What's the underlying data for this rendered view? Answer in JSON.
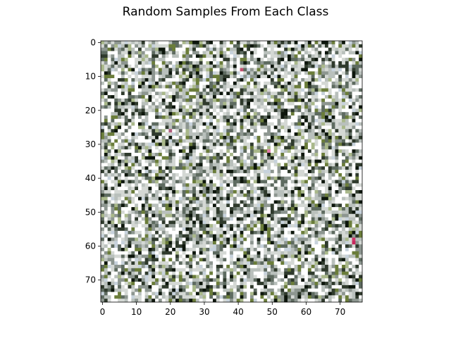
{
  "figure": {
    "title": "Random Samples From Each Class"
  },
  "chart_data": {
    "type": "heatmap",
    "title": "Random Samples From Each Class",
    "xlabel": "",
    "ylabel": "",
    "image_size": [
      77,
      77
    ],
    "xlim": [
      -0.5,
      76.5
    ],
    "ylim": [
      76.5,
      -0.5
    ],
    "xticks": [
      0,
      10,
      20,
      30,
      40,
      50,
      60,
      70
    ],
    "yticks": [
      0,
      10,
      20,
      30,
      40,
      50,
      60,
      70
    ],
    "grid": false,
    "legend": "none",
    "palette": [
      "#ffffff",
      "#d4d8d4",
      "#b9c0bc",
      "#8d9690",
      "#5e6b60",
      "#2f3a2c",
      "#0d160c",
      "#6b7d3a",
      "#a9b88a",
      "#c7d2dc"
    ],
    "accent_pixels": [
      {
        "x": 74,
        "y": 58,
        "color": "#d0356a"
      },
      {
        "x": 74,
        "y": 59,
        "color": "#c8285c"
      },
      {
        "x": 49,
        "y": 32,
        "color": "#e07aa8"
      },
      {
        "x": 41,
        "y": 8,
        "color": "#c05070"
      },
      {
        "x": 20,
        "y": 26,
        "color": "#b06080"
      }
    ]
  }
}
